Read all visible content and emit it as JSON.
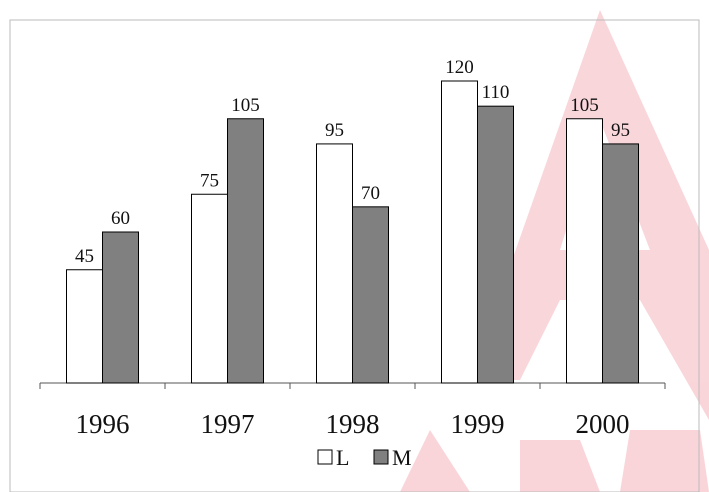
{
  "chart_data": {
    "type": "bar",
    "categories": [
      "1996",
      "1997",
      "1998",
      "1999",
      "2000"
    ],
    "series": [
      {
        "name": "L",
        "color": "#ffffff",
        "values": [
          45,
          75,
          95,
          120,
          105
        ]
      },
      {
        "name": "M",
        "color": "#808080",
        "values": [
          60,
          105,
          70,
          110,
          95
        ]
      }
    ],
    "ylim": [
      0,
      120
    ]
  }
}
